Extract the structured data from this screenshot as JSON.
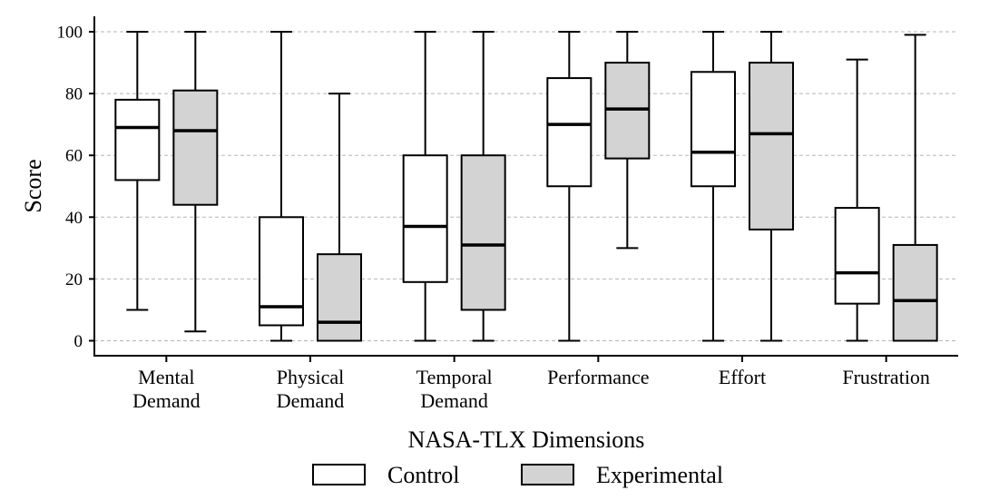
{
  "chart_data": {
    "type": "box",
    "title": "",
    "xlabel": "NASA-TLX Dimensions",
    "ylabel": "Score",
    "ylim": [
      -5,
      105
    ],
    "yticks": [
      0,
      20,
      40,
      60,
      80,
      100
    ],
    "grid": true,
    "legend_position": "bottom-center",
    "categories": [
      [
        "Mental",
        "Demand"
      ],
      [
        "Physical",
        "Demand"
      ],
      [
        "Temporal",
        "Demand"
      ],
      [
        "Performance"
      ],
      [
        "Effort"
      ],
      [
        "Frustration"
      ]
    ],
    "series": [
      {
        "name": "Control",
        "color": "#ffffff",
        "boxes": [
          {
            "min": 10,
            "q1": 52,
            "median": 69,
            "q3": 78,
            "max": 100
          },
          {
            "min": 0,
            "q1": 5,
            "median": 11,
            "q3": 40,
            "max": 100
          },
          {
            "min": 0,
            "q1": 19,
            "median": 37,
            "q3": 60,
            "max": 100
          },
          {
            "min": 0,
            "q1": 50,
            "median": 70,
            "q3": 85,
            "max": 100
          },
          {
            "min": 0,
            "q1": 50,
            "median": 61,
            "q3": 87,
            "max": 100
          },
          {
            "min": 0,
            "q1": 12,
            "median": 22,
            "q3": 43,
            "max": 91
          }
        ]
      },
      {
        "name": "Experimental",
        "color": "#d3d3d3",
        "boxes": [
          {
            "min": 3,
            "q1": 44,
            "median": 68,
            "q3": 81,
            "max": 100
          },
          {
            "min": 0,
            "q1": 0,
            "median": 6,
            "q3": 28,
            "max": 80
          },
          {
            "min": 0,
            "q1": 10,
            "median": 31,
            "q3": 60,
            "max": 100
          },
          {
            "min": 30,
            "q1": 59,
            "median": 75,
            "q3": 90,
            "max": 100
          },
          {
            "min": 0,
            "q1": 36,
            "median": 67,
            "q3": 90,
            "max": 100
          },
          {
            "min": 0,
            "q1": 0,
            "median": 13,
            "q3": 31,
            "max": 99
          }
        ]
      }
    ]
  }
}
